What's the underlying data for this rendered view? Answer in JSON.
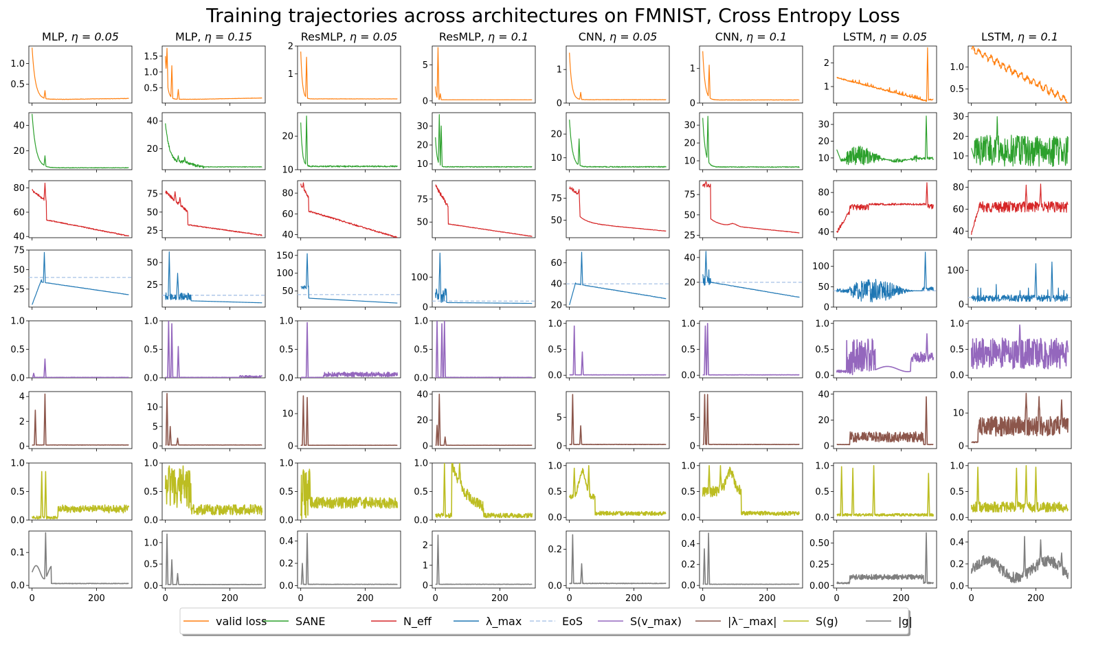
{
  "chart_data": {
    "type": "line",
    "title": "Training trajectories across architectures on FMNIST, Cross Entropy Loss",
    "x_range": [
      0,
      300
    ],
    "x_ticks": [
      0,
      200
    ],
    "columns": [
      {
        "name": "MLP",
        "title_prefix": "MLP, ",
        "title_eta": "η = 0.05",
        "eta": 0.05
      },
      {
        "name": "MLP",
        "title_prefix": "MLP, ",
        "title_eta": "η = 0.15",
        "eta": 0.15
      },
      {
        "name": "ResMLP",
        "title_prefix": "ResMLP, ",
        "title_eta": "η = 0.05",
        "eta": 0.05
      },
      {
        "name": "ResMLP",
        "title_prefix": "ResMLP, ",
        "title_eta": "η = 0.1",
        "eta": 0.1
      },
      {
        "name": "CNN",
        "title_prefix": "CNN, ",
        "title_eta": "η = 0.05",
        "eta": 0.05
      },
      {
        "name": "CNN",
        "title_prefix": "CNN, ",
        "title_eta": "η = 0.1",
        "eta": 0.1
      },
      {
        "name": "LSTM",
        "title_prefix": "LSTM, ",
        "title_eta": "η = 0.05",
        "eta": 0.05
      },
      {
        "name": "LSTM",
        "title_prefix": "LSTM, ",
        "title_eta": "η = 0.1",
        "eta": 0.1
      }
    ],
    "rows": [
      {
        "metric": "valid loss",
        "color": "#ff7f0e",
        "ylim": [
          [
            0.05,
            1.42
          ],
          [
            0.02,
            1.82
          ],
          [
            -0.05,
            2.0
          ],
          [
            -0.3,
            7.6
          ],
          [
            0,
            1.7
          ],
          [
            0,
            1.65
          ],
          [
            0.3,
            2.72
          ],
          [
            0.18,
            1.48
          ]
        ],
        "yticks": [
          [
            0.5,
            1.0
          ],
          [
            0.5,
            1.0,
            1.5
          ],
          [
            1,
            2
          ],
          [
            0,
            5
          ],
          [
            0,
            1
          ],
          [
            0,
            1
          ],
          [
            1,
            2
          ],
          [
            0.5,
            1.0
          ]
        ],
        "labels": [
          [
            "0.5",
            "1.0"
          ],
          [
            "0.5",
            "1.0",
            "1.5"
          ],
          [
            "1",
            "2"
          ],
          [
            "0",
            "5"
          ],
          [
            "0",
            "1"
          ],
          [
            "0",
            "1"
          ],
          [
            "1",
            "2"
          ],
          [
            "0.5",
            "1.0"
          ]
        ]
      },
      {
        "metric": "SANE",
        "color": "#2ca02c",
        "ylim": [
          [
            5,
            50
          ],
          [
            5,
            46
          ],
          [
            10,
            27
          ],
          [
            7,
            37
          ],
          [
            5,
            29
          ],
          [
            5,
            37
          ],
          [
            3,
            37
          ],
          [
            3,
            32
          ]
        ],
        "yticks": [
          [
            20,
            40
          ],
          [
            20,
            40
          ],
          [
            10,
            20
          ],
          [
            10,
            20,
            30
          ],
          [
            10,
            20
          ],
          [
            10,
            20,
            30
          ],
          [
            10,
            20,
            30
          ],
          [
            10,
            20,
            30
          ]
        ],
        "labels": [
          [
            "20",
            "40"
          ],
          [
            "20",
            "40"
          ],
          [
            "10",
            "20"
          ],
          [
            "10",
            "20",
            "30"
          ],
          [
            "10",
            "20"
          ],
          [
            "10",
            "20",
            "30"
          ],
          [
            "10",
            "20",
            "30"
          ],
          [
            "10",
            "20",
            "30"
          ]
        ]
      },
      {
        "metric": "N_eff",
        "color": "#d62728",
        "ylim": [
          [
            39,
            86
          ],
          [
            15,
            93
          ],
          [
            37,
            92
          ],
          [
            33,
            95
          ],
          [
            30,
            95
          ],
          [
            22,
            92
          ],
          [
            34,
            92
          ],
          [
            34,
            86
          ]
        ],
        "yticks": [
          [
            40,
            60,
            80
          ],
          [
            25,
            50,
            75
          ],
          [
            40,
            60,
            80
          ],
          [
            50,
            75
          ],
          [
            50,
            75
          ],
          [
            25,
            50,
            75
          ],
          [
            40,
            60,
            80
          ],
          [
            40,
            60,
            80
          ]
        ],
        "labels": [
          [
            "40",
            "60",
            "80"
          ],
          [
            "25",
            "50",
            "75"
          ],
          [
            "40",
            "60",
            "80"
          ],
          [
            "50",
            "75"
          ],
          [
            "50",
            "75"
          ],
          [
            "25",
            "50",
            "75"
          ],
          [
            "40",
            "60",
            "80"
          ],
          [
            "40",
            "60",
            "80"
          ]
        ]
      },
      {
        "metric": "lambda_max",
        "color": "#1f77b4",
        "eos_color": "#aec7e8",
        "eos": [
          40,
          13.3,
          40,
          20,
          40,
          20,
          40,
          20
        ],
        "ylim": [
          [
            2,
            75
          ],
          [
            0,
            64
          ],
          [
            5,
            165
          ],
          [
            0,
            190
          ],
          [
            18,
            72
          ],
          [
            0,
            46
          ],
          [
            0,
            140
          ],
          [
            -8,
            160
          ]
        ],
        "yticks": [
          [
            25,
            50,
            75
          ],
          [
            25,
            50
          ],
          [
            50,
            100,
            150
          ],
          [
            0,
            100
          ],
          [
            20,
            40,
            60
          ],
          [
            20,
            40
          ],
          [
            0,
            50,
            100
          ],
          [
            0,
            100
          ]
        ],
        "labels": [
          [
            "25",
            "50",
            "75"
          ],
          [
            "25",
            "50"
          ],
          [
            "50",
            "100",
            "150"
          ],
          [
            "0",
            "100"
          ],
          [
            "20",
            "40",
            "60"
          ],
          [
            "20",
            "40"
          ],
          [
            "0",
            "50",
            "100"
          ],
          [
            "0",
            "100"
          ]
        ]
      },
      {
        "metric": "S(v_max)",
        "color": "#9467bd",
        "ylim": [
          [
            0,
            1
          ],
          [
            0,
            1
          ],
          [
            0,
            1
          ],
          [
            0,
            1
          ],
          [
            -0.05,
            1.05
          ],
          [
            -0.05,
            1.05
          ],
          [
            -0.05,
            1.05
          ],
          [
            -0.05,
            1.05
          ]
        ],
        "yticks": [
          [
            0,
            0.5,
            1
          ],
          [
            0,
            0.5,
            1
          ],
          [
            0,
            0.5,
            1
          ],
          [
            0,
            0.5,
            1
          ],
          [
            0,
            0.5,
            1
          ],
          [
            0,
            0.5,
            1
          ],
          [
            0,
            0.5,
            1
          ],
          [
            0,
            0.5,
            1
          ]
        ],
        "labels": [
          [
            "0.0",
            "0.5",
            "1.0"
          ],
          [
            "0.0",
            "0.5",
            "1.0"
          ],
          [
            "0.0",
            "0.5",
            "1.0"
          ],
          [
            "0.0",
            "0.5",
            "1.0"
          ],
          [
            "0.0",
            "0.5",
            "1.0"
          ],
          [
            "0.0",
            "0.5",
            "1.0"
          ],
          [
            "0.0",
            "0.5",
            "1.0"
          ],
          [
            "0.0",
            "0.5",
            "1.0"
          ]
        ]
      },
      {
        "metric": "|lambda_max^-|",
        "color": "#8c564b",
        "ylim": [
          [
            -0.2,
            4.4
          ],
          [
            -0.7,
            14
          ],
          [
            -0.8,
            16.8
          ],
          [
            -2,
            42
          ],
          [
            -0.5,
            9.5
          ],
          [
            -0.5,
            9.5
          ],
          [
            -2,
            42
          ],
          [
            -0.8,
            16.5
          ]
        ],
        "yticks": [
          [
            0,
            2,
            4
          ],
          [
            0,
            5,
            10
          ],
          [
            0,
            10
          ],
          [
            0,
            20,
            40
          ],
          [
            0,
            5
          ],
          [
            0,
            5
          ],
          [
            0,
            20,
            40
          ],
          [
            0,
            10
          ]
        ],
        "labels": [
          [
            "0",
            "2",
            "4"
          ],
          [
            "0",
            "5",
            "10"
          ],
          [
            "0",
            "10"
          ],
          [
            "0",
            "20",
            "40"
          ],
          [
            "0",
            "5"
          ],
          [
            "0",
            "5"
          ],
          [
            "0",
            "20",
            "40"
          ],
          [
            "0",
            "10"
          ]
        ]
      },
      {
        "metric": "S(g)",
        "color": "#bcbd22",
        "ylim": [
          [
            0,
            1
          ],
          [
            0,
            1
          ],
          [
            0,
            1
          ],
          [
            0,
            1
          ],
          [
            -0.05,
            1.05
          ],
          [
            -0.05,
            1.05
          ],
          [
            -0.05,
            1.05
          ],
          [
            -0.05,
            1.05
          ]
        ],
        "yticks": [
          [
            0,
            0.5,
            1
          ],
          [
            0,
            0.5,
            1
          ],
          [
            0,
            0.5,
            1
          ],
          [
            0,
            0.5,
            1
          ],
          [
            0,
            0.5,
            1
          ],
          [
            0,
            0.5,
            1
          ],
          [
            0,
            0.5,
            1
          ],
          [
            0,
            0.5,
            1
          ]
        ],
        "labels": [
          [
            "0.0",
            "0.5",
            "1.0"
          ],
          [
            "0.0",
            "0.5",
            "1.0"
          ],
          [
            "0.0",
            "0.5",
            "1.0"
          ],
          [
            "0.0",
            "0.5",
            "1.0"
          ],
          [
            "0.0",
            "0.5",
            "1.0"
          ],
          [
            "0.0",
            "0.5",
            "1.0"
          ],
          [
            "0.0",
            "0.5",
            "1.0"
          ],
          [
            "0.0",
            "0.5",
            "1.0"
          ]
        ]
      },
      {
        "metric": "|g|",
        "color": "#7f7f7f",
        "ylim": [
          [
            -0.008,
            0.165
          ],
          [
            -0.06,
            1.27
          ],
          [
            -0.022,
            0.49
          ],
          [
            -0.13,
            2.7
          ],
          [
            -0.014,
            0.3
          ],
          [
            -0.025,
            0.52
          ],
          [
            -0.03,
            0.64
          ],
          [
            -0.02,
            0.5
          ]
        ],
        "yticks": [
          [
            0,
            0.1
          ],
          [
            0,
            0.5,
            1.0
          ],
          [
            0,
            0.2,
            0.4
          ],
          [
            0,
            1,
            2
          ],
          [
            0,
            0.2
          ],
          [
            0,
            0.2,
            0.4
          ],
          [
            0,
            0.25,
            0.5
          ],
          [
            0,
            0.2,
            0.4
          ]
        ],
        "labels": [
          [
            "0.0",
            "0.1"
          ],
          [
            "0.0",
            "0.5",
            "1.0"
          ],
          [
            "0.0",
            "0.2",
            "0.4"
          ],
          [
            "0",
            "1",
            "2"
          ],
          [
            "0.0",
            "0.2"
          ],
          [
            "0.0",
            "0.2",
            "0.4"
          ],
          [
            "0.00",
            "0.25",
            "0.50"
          ],
          [
            "0.0",
            "0.2",
            "0.4"
          ]
        ]
      }
    ],
    "series_generators": "each column's curve is synthesized per metric: early transient spike (x≈0–45), then decay/plateau; LSTM columns oscillate",
    "legend": {
      "placement": "bottom-center",
      "entries": [
        {
          "label": "valid loss",
          "color": "#ff7f0e",
          "style": "solid"
        },
        {
          "label": "SANE",
          "color": "#2ca02c",
          "style": "solid"
        },
        {
          "label": "N_eff",
          "color": "#d62728",
          "style": "solid"
        },
        {
          "label": "λ_max",
          "color": "#1f77b4",
          "style": "solid"
        },
        {
          "label": "EoS",
          "color": "#aec7e8",
          "style": "dashed"
        },
        {
          "label": "S(v_max)",
          "color": "#9467bd",
          "style": "solid"
        },
        {
          "label": "|λ⁻_max|",
          "color": "#8c564b",
          "style": "solid"
        },
        {
          "label": "S(g)",
          "color": "#bcbd22",
          "style": "solid"
        },
        {
          "label": "|g|",
          "color": "#7f7f7f",
          "style": "solid"
        }
      ]
    }
  }
}
